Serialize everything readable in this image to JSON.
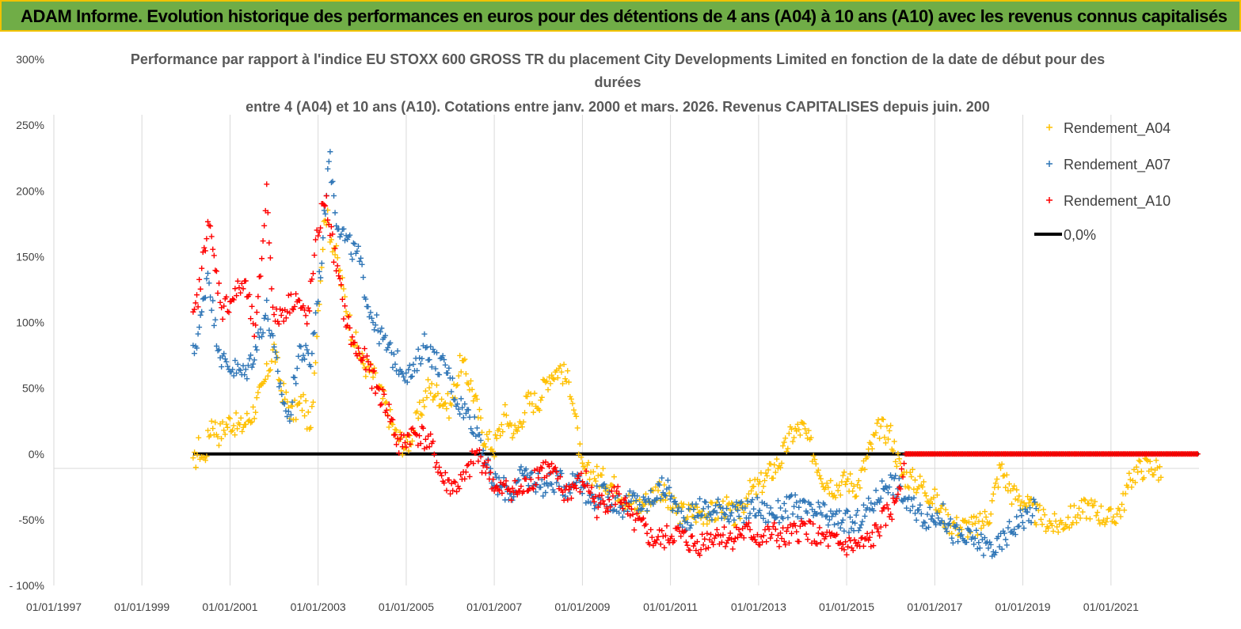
{
  "banner": {
    "title": "ADAM Informe. Evolution historique des performances en euros pour des détentions de 4 ans (A04) à 10 ans (A10) avec les revenus connus capitalisés"
  },
  "colors": {
    "banner_bg": "#70ad47",
    "banner_border": "#f2c200",
    "A04": "#ffc000",
    "A07": "#2e75b6",
    "A10": "#ff0000",
    "zero_line": "#000000",
    "grid": "#d9d9d9"
  },
  "chart_data": {
    "type": "scatter",
    "title_lines": [
      "Performance par rapport à l'indice EU STOXX 600 GROSS TR  du placement City Developments Limited en fonction de la date de début pour des",
      "durées",
      "entre 4 (A04) et 10 ans (A10). Cotations entre janv. 2000 et mars. 2026. Revenus CAPITALISES depuis juin. 200"
    ],
    "xlabel": "",
    "ylabel": "",
    "x_tick_labels": [
      "01/01/1997",
      "01/01/1999",
      "01/01/2001",
      "01/01/2003",
      "01/01/2005",
      "01/01/2007",
      "01/01/2009",
      "01/01/2011",
      "01/01/2013",
      "01/01/2015",
      "01/01/2017",
      "01/01/2019",
      "01/01/2021"
    ],
    "xlim": [
      "1997-01-01",
      "2023-01-01"
    ],
    "y_tick_labels": [
      "300%",
      "250%",
      "200%",
      "150%",
      "100%",
      "50%",
      "0%",
      "-50%",
      "- 100%"
    ],
    "ylim": [
      -100,
      300
    ],
    "grid": "vertical",
    "legend_position": "right",
    "series": [
      {
        "name": "Rendement_A04",
        "marker": "+",
        "points": [
          [
            "2000-03-01",
            -10
          ],
          [
            "2000-04-15",
            5
          ],
          [
            "2000-06-01",
            -5
          ],
          [
            "2000-08-01",
            25
          ],
          [
            "2000-10-01",
            15
          ],
          [
            "2001-01-01",
            25
          ],
          [
            "2001-04-01",
            20
          ],
          [
            "2001-07-01",
            30
          ],
          [
            "2001-10-01",
            50
          ],
          [
            "2002-01-01",
            80
          ],
          [
            "2002-03-01",
            50
          ],
          [
            "2002-06-01",
            30
          ],
          [
            "2002-09-01",
            40
          ],
          [
            "2002-11-01",
            15
          ],
          [
            "2003-01-01",
            110
          ],
          [
            "2003-03-01",
            185
          ],
          [
            "2003-06-01",
            150
          ],
          [
            "2003-10-01",
            95
          ],
          [
            "2004-01-01",
            70
          ],
          [
            "2004-04-01",
            60
          ],
          [
            "2004-07-01",
            40
          ],
          [
            "2004-10-01",
            15
          ],
          [
            "2005-01-01",
            5
          ],
          [
            "2005-04-01",
            25
          ],
          [
            "2005-07-01",
            50
          ],
          [
            "2005-10-01",
            45
          ],
          [
            "2006-01-01",
            35
          ],
          [
            "2006-04-01",
            70
          ],
          [
            "2006-07-01",
            50
          ],
          [
            "2006-10-01",
            15
          ],
          [
            "2007-01-01",
            5
          ],
          [
            "2007-04-01",
            30
          ],
          [
            "2007-07-01",
            15
          ],
          [
            "2007-10-01",
            40
          ],
          [
            "2008-01-01",
            40
          ],
          [
            "2008-04-01",
            60
          ],
          [
            "2008-07-01",
            65
          ],
          [
            "2008-10-01",
            50
          ],
          [
            "2009-01-01",
            -15
          ],
          [
            "2009-04-01",
            -15
          ],
          [
            "2009-07-01",
            -20
          ],
          [
            "2009-10-01",
            -25
          ],
          [
            "2010-01-01",
            -35
          ],
          [
            "2010-04-01",
            -40
          ],
          [
            "2010-07-01",
            -35
          ],
          [
            "2010-10-01",
            -25
          ],
          [
            "2011-01-01",
            -40
          ],
          [
            "2011-04-01",
            -45
          ],
          [
            "2011-07-01",
            -45
          ],
          [
            "2011-10-01",
            -45
          ],
          [
            "2012-01-01",
            -45
          ],
          [
            "2012-04-01",
            -40
          ],
          [
            "2012-07-01",
            -50
          ],
          [
            "2012-10-01",
            -30
          ],
          [
            "2013-01-01",
            -25
          ],
          [
            "2013-04-01",
            -15
          ],
          [
            "2013-07-01",
            -5
          ],
          [
            "2013-10-01",
            15
          ],
          [
            "2014-01-01",
            20
          ],
          [
            "2014-04-01",
            0
          ],
          [
            "2014-07-01",
            -20
          ],
          [
            "2014-10-01",
            -25
          ],
          [
            "2015-01-01",
            -20
          ],
          [
            "2015-04-01",
            -25
          ],
          [
            "2015-07-01",
            0
          ],
          [
            "2015-10-01",
            20
          ],
          [
            "2016-01-01",
            15
          ],
          [
            "2016-04-01",
            -15
          ],
          [
            "2016-07-01",
            -20
          ],
          [
            "2016-10-01",
            -25
          ],
          [
            "2017-01-01",
            -35
          ],
          [
            "2017-04-01",
            -50
          ],
          [
            "2017-07-01",
            -55
          ],
          [
            "2017-10-01",
            -55
          ],
          [
            "2018-01-01",
            -55
          ],
          [
            "2018-04-01",
            -45
          ],
          [
            "2018-07-01",
            -10
          ],
          [
            "2018-10-01",
            -30
          ],
          [
            "2019-01-01",
            -35
          ],
          [
            "2019-04-01",
            -45
          ],
          [
            "2019-07-01",
            -50
          ],
          [
            "2019-10-01",
            -55
          ],
          [
            "2020-01-01",
            -50
          ],
          [
            "2020-04-01",
            -45
          ],
          [
            "2020-07-01",
            -40
          ],
          [
            "2020-10-01",
            -45
          ],
          [
            "2021-01-01",
            -50
          ],
          [
            "2021-04-01",
            -40
          ],
          [
            "2021-07-01",
            -15
          ],
          [
            "2021-10-01",
            -10
          ],
          [
            "2022-01-01",
            -10
          ],
          [
            "2022-03-01",
            -15
          ]
        ]
      },
      {
        "name": "Rendement_A07",
        "marker": "+",
        "points": [
          [
            "2000-03-01",
            75
          ],
          [
            "2000-05-01",
            100
          ],
          [
            "2000-07-01",
            140
          ],
          [
            "2000-09-01",
            95
          ],
          [
            "2000-11-01",
            70
          ],
          [
            "2001-02-01",
            65
          ],
          [
            "2001-05-01",
            60
          ],
          [
            "2001-08-01",
            80
          ],
          [
            "2001-11-01",
            110
          ],
          [
            "2002-02-01",
            60
          ],
          [
            "2002-05-01",
            25
          ],
          [
            "2002-08-01",
            80
          ],
          [
            "2002-11-01",
            70
          ],
          [
            "2003-02-01",
            150
          ],
          [
            "2003-04-01",
            230
          ],
          [
            "2003-06-01",
            180
          ],
          [
            "2003-09-01",
            160
          ],
          [
            "2003-12-01",
            150
          ],
          [
            "2004-03-01",
            110
          ],
          [
            "2004-06-01",
            90
          ],
          [
            "2004-09-01",
            75
          ],
          [
            "2004-12-01",
            65
          ],
          [
            "2005-03-01",
            60
          ],
          [
            "2005-06-01",
            85
          ],
          [
            "2005-09-01",
            70
          ],
          [
            "2005-12-01",
            65
          ],
          [
            "2006-03-01",
            40
          ],
          [
            "2006-06-01",
            30
          ],
          [
            "2006-09-01",
            15
          ],
          [
            "2006-12-01",
            -20
          ],
          [
            "2007-03-01",
            -25
          ],
          [
            "2007-06-01",
            -30
          ],
          [
            "2007-09-01",
            -15
          ],
          [
            "2007-12-01",
            -20
          ],
          [
            "2008-03-01",
            -25
          ],
          [
            "2008-06-01",
            -20
          ],
          [
            "2008-09-01",
            -25
          ],
          [
            "2008-12-01",
            -15
          ],
          [
            "2009-03-01",
            -35
          ],
          [
            "2009-06-01",
            -30
          ],
          [
            "2009-09-01",
            -35
          ],
          [
            "2009-12-01",
            -40
          ],
          [
            "2010-03-01",
            -35
          ],
          [
            "2010-06-01",
            -40
          ],
          [
            "2010-09-01",
            -30
          ],
          [
            "2010-12-01",
            -25
          ],
          [
            "2011-03-01",
            -45
          ],
          [
            "2011-06-01",
            -50
          ],
          [
            "2011-09-01",
            -40
          ],
          [
            "2011-12-01",
            -45
          ],
          [
            "2012-03-01",
            -40
          ],
          [
            "2012-06-01",
            -45
          ],
          [
            "2012-09-01",
            -45
          ],
          [
            "2012-12-01",
            -40
          ],
          [
            "2013-03-01",
            -45
          ],
          [
            "2013-06-01",
            -45
          ],
          [
            "2013-09-01",
            -40
          ],
          [
            "2013-12-01",
            -40
          ],
          [
            "2014-03-01",
            -45
          ],
          [
            "2014-06-01",
            -45
          ],
          [
            "2014-09-01",
            -50
          ],
          [
            "2014-12-01",
            -50
          ],
          [
            "2015-03-01",
            -55
          ],
          [
            "2015-06-01",
            -45
          ],
          [
            "2015-09-01",
            -35
          ],
          [
            "2015-12-01",
            -20
          ],
          [
            "2016-03-01",
            -25
          ],
          [
            "2016-06-01",
            -40
          ],
          [
            "2016-09-01",
            -45
          ],
          [
            "2016-12-01",
            -50
          ],
          [
            "2017-03-01",
            -45
          ],
          [
            "2017-06-01",
            -60
          ],
          [
            "2017-09-01",
            -65
          ],
          [
            "2017-12-01",
            -65
          ],
          [
            "2018-03-01",
            -70
          ],
          [
            "2018-06-01",
            -72
          ],
          [
            "2018-09-01",
            -60
          ],
          [
            "2018-12-01",
            -50
          ],
          [
            "2019-03-01",
            -45
          ],
          [
            "2019-05-01",
            -40
          ]
        ]
      },
      {
        "name": "Rendement_A10",
        "marker": "+",
        "points": [
          [
            "2000-03-01",
            100
          ],
          [
            "2000-05-01",
            130
          ],
          [
            "2000-07-01",
            180
          ],
          [
            "2000-09-01",
            140
          ],
          [
            "2000-11-01",
            110
          ],
          [
            "2001-02-01",
            120
          ],
          [
            "2001-05-01",
            130
          ],
          [
            "2001-08-01",
            90
          ],
          [
            "2001-11-01",
            200
          ],
          [
            "2002-01-01",
            100
          ],
          [
            "2002-04-01",
            110
          ],
          [
            "2002-07-01",
            120
          ],
          [
            "2002-10-01",
            100
          ],
          [
            "2003-01-01",
            170
          ],
          [
            "2003-03-01",
            195
          ],
          [
            "2003-05-01",
            160
          ],
          [
            "2003-08-01",
            110
          ],
          [
            "2003-11-01",
            80
          ],
          [
            "2004-02-01",
            70
          ],
          [
            "2004-05-01",
            50
          ],
          [
            "2004-08-01",
            35
          ],
          [
            "2004-11-01",
            5
          ],
          [
            "2005-02-01",
            15
          ],
          [
            "2005-05-01",
            15
          ],
          [
            "2005-08-01",
            5
          ],
          [
            "2005-11-01",
            -20
          ],
          [
            "2006-02-01",
            -25
          ],
          [
            "2006-05-01",
            -20
          ],
          [
            "2006-08-01",
            0
          ],
          [
            "2006-11-01",
            -10
          ],
          [
            "2007-02-01",
            -30
          ],
          [
            "2007-05-01",
            -25
          ],
          [
            "2007-08-01",
            -30
          ],
          [
            "2007-11-01",
            -20
          ],
          [
            "2008-02-01",
            -10
          ],
          [
            "2008-05-01",
            -15
          ],
          [
            "2008-08-01",
            -30
          ],
          [
            "2008-11-01",
            -25
          ],
          [
            "2009-02-01",
            -20
          ],
          [
            "2009-05-01",
            -40
          ],
          [
            "2009-08-01",
            -35
          ],
          [
            "2009-11-01",
            -30
          ],
          [
            "2010-02-01",
            -50
          ],
          [
            "2010-05-01",
            -55
          ],
          [
            "2010-08-01",
            -65
          ],
          [
            "2010-11-01",
            -65
          ],
          [
            "2011-02-01",
            -60
          ],
          [
            "2011-05-01",
            -65
          ],
          [
            "2011-08-01",
            -70
          ],
          [
            "2011-11-01",
            -65
          ],
          [
            "2012-02-01",
            -60
          ],
          [
            "2012-05-01",
            -65
          ],
          [
            "2012-08-01",
            -60
          ],
          [
            "2012-11-01",
            -60
          ],
          [
            "2013-02-01",
            -65
          ],
          [
            "2013-05-01",
            -60
          ],
          [
            "2013-08-01",
            -65
          ],
          [
            "2013-11-01",
            -60
          ],
          [
            "2014-02-01",
            -55
          ],
          [
            "2014-05-01",
            -65
          ],
          [
            "2014-08-01",
            -65
          ],
          [
            "2014-11-01",
            -70
          ],
          [
            "2015-02-01",
            -70
          ],
          [
            "2015-05-01",
            -70
          ],
          [
            "2015-08-01",
            -65
          ],
          [
            "2015-11-01",
            -50
          ],
          [
            "2016-02-01",
            -40
          ],
          [
            "2016-05-01",
            0
          ],
          [
            "2016-08-01",
            0
          ],
          [
            "2017-01-01",
            0
          ],
          [
            "2018-01-01",
            0
          ],
          [
            "2019-01-01",
            0
          ],
          [
            "2020-01-01",
            0
          ],
          [
            "2021-01-01",
            0
          ],
          [
            "2022-01-01",
            0
          ],
          [
            "2022-12-31",
            0
          ]
        ]
      },
      {
        "name": "0,0%",
        "marker": "line",
        "points": [
          [
            "2000-03-01",
            0
          ],
          [
            "2022-12-31",
            0
          ]
        ]
      }
    ]
  }
}
